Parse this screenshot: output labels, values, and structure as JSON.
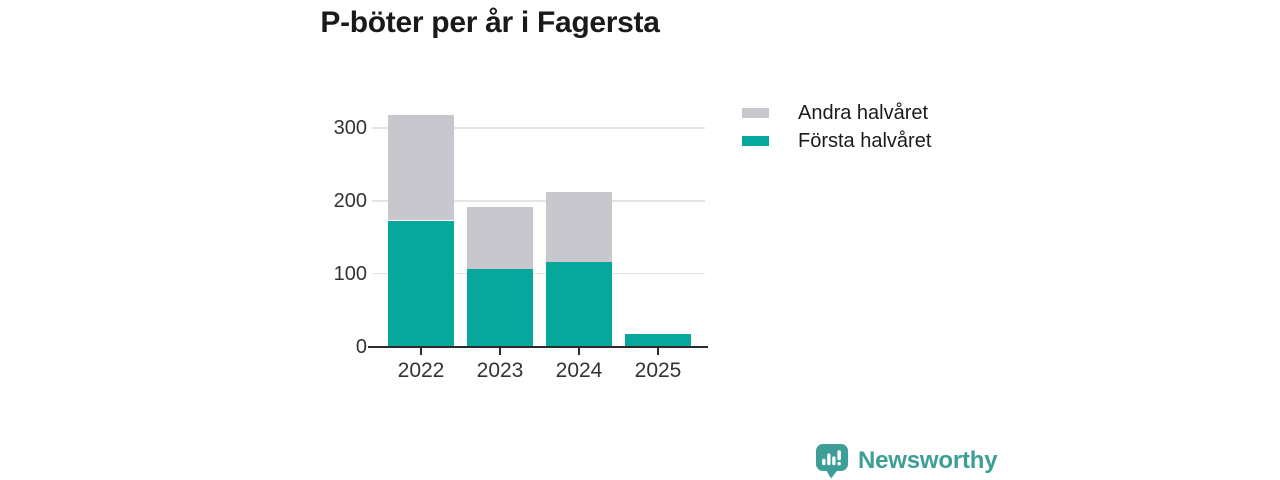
{
  "title": "P-böter per år i Fagersta",
  "legend": {
    "items": [
      {
        "label": "Andra halvåret",
        "color": "#c9c7ce"
      },
      {
        "label": "Första halvåret",
        "color": "#07a79b"
      }
    ]
  },
  "chart_data": {
    "type": "bar",
    "stacked": true,
    "title": "P-böter per år i Fagersta",
    "categories": [
      "2022",
      "2023",
      "2024",
      "2025"
    ],
    "series": [
      {
        "name": "Första halvåret",
        "color": "#07a79b",
        "values": [
          173,
          107,
          116,
          17
        ]
      },
      {
        "name": "Andra halvåret",
        "color": "#c9c7ce",
        "values": [
          145,
          85,
          96,
          0
        ]
      }
    ],
    "totals": [
      318,
      192,
      212,
      17
    ],
    "xlabel": "",
    "ylabel": "",
    "y_ticks": [
      0,
      100,
      200,
      300
    ],
    "ylim": [
      0,
      330
    ],
    "grid": true,
    "legend_position": "top-right"
  },
  "footer": {
    "brand": "Newsworthy",
    "brand_color": "#3d9e97",
    "logo_icon": "newsworthy-chart-speech-bubble-icon"
  },
  "colors": {
    "forsta_teal": "#07a79b",
    "andra_gray": "#c9c7ce",
    "axis_line": "#2b2b2b",
    "gridline": "#e4e3e6",
    "title_text": "#1a1a1a",
    "tick_text": "#333333"
  }
}
